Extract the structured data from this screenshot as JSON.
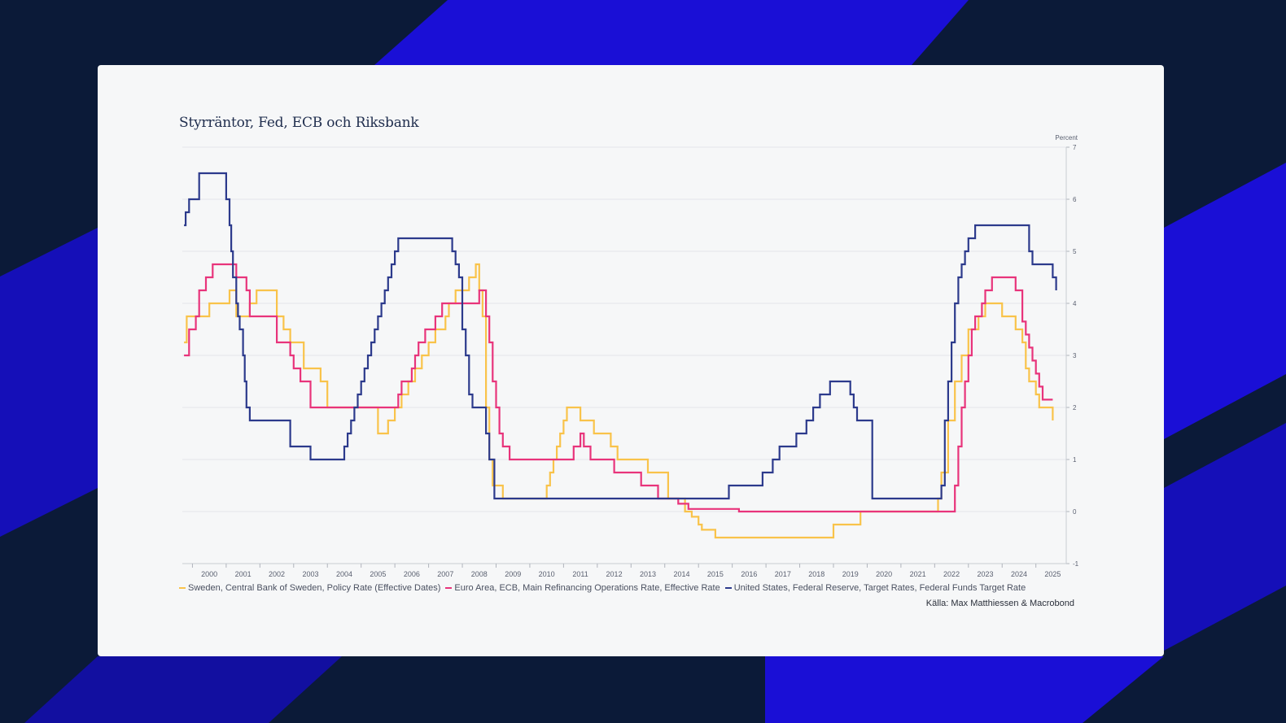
{
  "colors": {
    "background": "#0b1a38",
    "accent_blue": "#1a0fd6",
    "card": "#f6f7f8",
    "sweden": "#f9c34a",
    "euro": "#e8347b",
    "us": "#2c3a8c"
  },
  "footer": {
    "source": "Källa: Max Matthiessen & Macrobond"
  },
  "chart_data": {
    "type": "line",
    "title": "Styrräntor, Fed, ECB och Riksbank",
    "ylabel": "Percent",
    "xlim": [
      1999.7,
      2025.9
    ],
    "ylim": [
      -1,
      7
    ],
    "yticks": [
      "7",
      "6",
      "5",
      "4",
      "3",
      "2",
      "1",
      "0",
      "-1"
    ],
    "xticks": [
      "2000",
      "2001",
      "2002",
      "2003",
      "2004",
      "2005",
      "2006",
      "2007",
      "2008",
      "2009",
      "2010",
      "2011",
      "2012",
      "2013",
      "2014",
      "2015",
      "2016",
      "2017",
      "2018",
      "2019",
      "2020",
      "2021",
      "2022",
      "2023",
      "2024",
      "2025"
    ],
    "grid": true,
    "legend_position": "bottom",
    "series": [
      {
        "key": "sweden",
        "name": "Sweden, Central Bank of Sweden, Policy Rate (Effective Dates)",
        "x": [
          1999.75,
          1999.83,
          2000.0,
          2000.5,
          2000.9,
          2001.1,
          2001.3,
          2001.5,
          2001.7,
          2001.9,
          2002.3,
          2002.5,
          2002.7,
          2002.9,
          2003.3,
          2003.6,
          2003.8,
          2004.0,
          2004.1,
          2005.0,
          2005.5,
          2005.6,
          2005.8,
          2006.0,
          2006.2,
          2006.4,
          2006.5,
          2006.6,
          2006.8,
          2007.0,
          2007.2,
          2007.4,
          2007.5,
          2007.6,
          2007.8,
          2008.0,
          2008.2,
          2008.4,
          2008.5,
          2008.6,
          2008.7,
          2008.8,
          2008.9,
          2009.0,
          2009.2,
          2009.3,
          2009.5,
          2010.0,
          2010.5,
          2010.6,
          2010.7,
          2010.8,
          2010.9,
          2011.0,
          2011.1,
          2011.3,
          2011.5,
          2011.9,
          2012.2,
          2012.4,
          2012.6,
          2012.8,
          2013.0,
          2013.5,
          2013.8,
          2014.1,
          2014.3,
          2014.5,
          2014.6,
          2014.8,
          2015.0,
          2015.1,
          2015.5,
          2016.1,
          2019.0,
          2019.7,
          2019.8,
          2022.0,
          2022.1,
          2022.2,
          2022.4,
          2022.5,
          2022.6,
          2022.7,
          2022.8,
          2022.9,
          2023.0,
          2023.1,
          2023.3,
          2023.5,
          2023.8,
          2024.0,
          2024.3,
          2024.4,
          2024.6,
          2024.7,
          2024.8,
          2025.0,
          2025.1,
          2025.2,
          2025.5
        ],
        "values": [
          3.25,
          3.75,
          3.75,
          4.0,
          4.0,
          4.25,
          3.75,
          3.75,
          4.0,
          4.25,
          4.25,
          3.75,
          3.5,
          3.25,
          2.75,
          2.75,
          2.5,
          2.0,
          2.0,
          2.0,
          1.5,
          1.5,
          1.75,
          2.0,
          2.25,
          2.5,
          2.5,
          2.75,
          3.0,
          3.25,
          3.5,
          3.5,
          3.75,
          4.0,
          4.25,
          4.25,
          4.5,
          4.75,
          4.25,
          3.75,
          2.0,
          1.0,
          0.5,
          0.5,
          0.25,
          0.25,
          0.25,
          0.25,
          0.5,
          0.75,
          1.0,
          1.25,
          1.5,
          1.75,
          2.0,
          2.0,
          1.75,
          1.5,
          1.5,
          1.25,
          1.0,
          1.0,
          1.0,
          0.75,
          0.75,
          0.25,
          0.25,
          0.25,
          0.0,
          -0.1,
          -0.25,
          -0.35,
          -0.5,
          -0.5,
          -0.25,
          -0.25,
          0.0,
          0.0,
          0.25,
          0.75,
          1.75,
          1.75,
          2.5,
          2.5,
          3.0,
          3.0,
          3.5,
          3.5,
          3.75,
          4.0,
          4.0,
          3.75,
          3.75,
          3.5,
          3.25,
          2.75,
          2.5,
          2.25,
          2.0,
          2.0,
          1.75
        ]
      },
      {
        "key": "euro",
        "name": "Euro Area, ECB, Main Refinancing Operations Rate, Effective Rate",
        "x": [
          1999.75,
          1999.8,
          1999.9,
          2000.1,
          2000.2,
          2000.3,
          2000.4,
          2000.6,
          2000.8,
          2001.3,
          2001.6,
          2001.7,
          2002.5,
          2002.8,
          2002.9,
          2003.0,
          2003.2,
          2003.5,
          2005.9,
          2006.1,
          2006.2,
          2006.3,
          2006.5,
          2006.6,
          2006.7,
          2006.9,
          2007.0,
          2007.2,
          2007.4,
          2007.5,
          2008.5,
          2008.7,
          2008.8,
          2008.9,
          2009.0,
          2009.1,
          2009.2,
          2009.4,
          2011.3,
          2011.5,
          2011.6,
          2011.8,
          2012.0,
          2012.5,
          2013.3,
          2013.8,
          2014.4,
          2014.7,
          2015.0,
          2016.2,
          2022.5,
          2022.6,
          2022.7,
          2022.8,
          2022.9,
          2023.0,
          2023.1,
          2023.2,
          2023.4,
          2023.5,
          2023.7,
          2024.0,
          2024.4,
          2024.6,
          2024.7,
          2024.8,
          2024.9,
          2025.0,
          2025.1,
          2025.2,
          2025.5
        ],
        "values": [
          3.0,
          3.0,
          3.5,
          3.75,
          4.25,
          4.25,
          4.5,
          4.75,
          4.75,
          4.5,
          4.25,
          3.75,
          3.25,
          3.25,
          3.0,
          2.75,
          2.5,
          2.0,
          2.0,
          2.25,
          2.5,
          2.5,
          2.75,
          3.0,
          3.25,
          3.5,
          3.5,
          3.75,
          4.0,
          4.0,
          4.25,
          3.75,
          3.25,
          2.5,
          2.0,
          1.5,
          1.25,
          1.0,
          1.25,
          1.5,
          1.25,
          1.0,
          1.0,
          0.75,
          0.5,
          0.25,
          0.15,
          0.05,
          0.05,
          0.0,
          0.0,
          0.5,
          1.25,
          2.0,
          2.5,
          3.0,
          3.5,
          3.75,
          4.0,
          4.25,
          4.5,
          4.5,
          4.25,
          3.65,
          3.4,
          3.15,
          2.9,
          2.65,
          2.4,
          2.15,
          2.15
        ]
      },
      {
        "key": "us",
        "name": "United States, Federal Reserve, Target Rates, Federal Funds Target Rate",
        "x": [
          1999.75,
          1999.8,
          1999.9,
          2000.1,
          2000.2,
          2000.4,
          2000.9,
          2001.0,
          2001.1,
          2001.15,
          2001.2,
          2001.3,
          2001.35,
          2001.4,
          2001.5,
          2001.55,
          2001.6,
          2001.7,
          2001.75,
          2001.8,
          2001.9,
          2001.95,
          2002.9,
          2003.5,
          2004.5,
          2004.6,
          2004.7,
          2004.8,
          2004.9,
          2005.0,
          2005.1,
          2005.2,
          2005.3,
          2005.4,
          2005.5,
          2005.6,
          2005.7,
          2005.8,
          2005.9,
          2006.0,
          2006.1,
          2006.2,
          2006.3,
          2006.4,
          2006.5,
          2007.7,
          2007.8,
          2007.9,
          2008.0,
          2008.1,
          2008.2,
          2008.3,
          2008.7,
          2008.8,
          2008.95,
          2015.9,
          2016.9,
          2017.2,
          2017.4,
          2017.5,
          2017.9,
          2018.2,
          2018.4,
          2018.6,
          2018.9,
          2019.5,
          2019.6,
          2019.7,
          2020.15,
          2020.2,
          2022.2,
          2022.3,
          2022.4,
          2022.5,
          2022.6,
          2022.7,
          2022.8,
          2022.9,
          2023.0,
          2023.1,
          2023.2,
          2023.4,
          2023.6,
          2024.7,
          2024.8,
          2024.9,
          2025.5,
          2025.6
        ],
        "values": [
          5.5,
          5.75,
          6.0,
          6.0,
          6.5,
          6.5,
          6.5,
          6.0,
          5.5,
          5.0,
          4.5,
          4.0,
          3.75,
          3.5,
          3.0,
          2.5,
          2.0,
          1.75,
          1.75,
          1.75,
          1.75,
          1.75,
          1.25,
          1.0,
          1.25,
          1.5,
          1.75,
          2.0,
          2.25,
          2.5,
          2.75,
          3.0,
          3.25,
          3.5,
          3.75,
          4.0,
          4.25,
          4.5,
          4.75,
          5.0,
          5.25,
          5.25,
          5.25,
          5.25,
          5.25,
          5.0,
          4.75,
          4.5,
          3.5,
          3.0,
          2.25,
          2.0,
          1.5,
          1.0,
          0.25,
          0.5,
          0.75,
          1.0,
          1.25,
          1.25,
          1.5,
          1.75,
          2.0,
          2.25,
          2.5,
          2.25,
          2.0,
          1.75,
          0.25,
          0.25,
          0.5,
          1.75,
          2.5,
          3.25,
          4.0,
          4.5,
          4.75,
          5.0,
          5.25,
          5.25,
          5.5,
          5.5,
          5.5,
          5.5,
          5.0,
          4.75,
          4.5,
          4.25
        ]
      }
    ]
  }
}
